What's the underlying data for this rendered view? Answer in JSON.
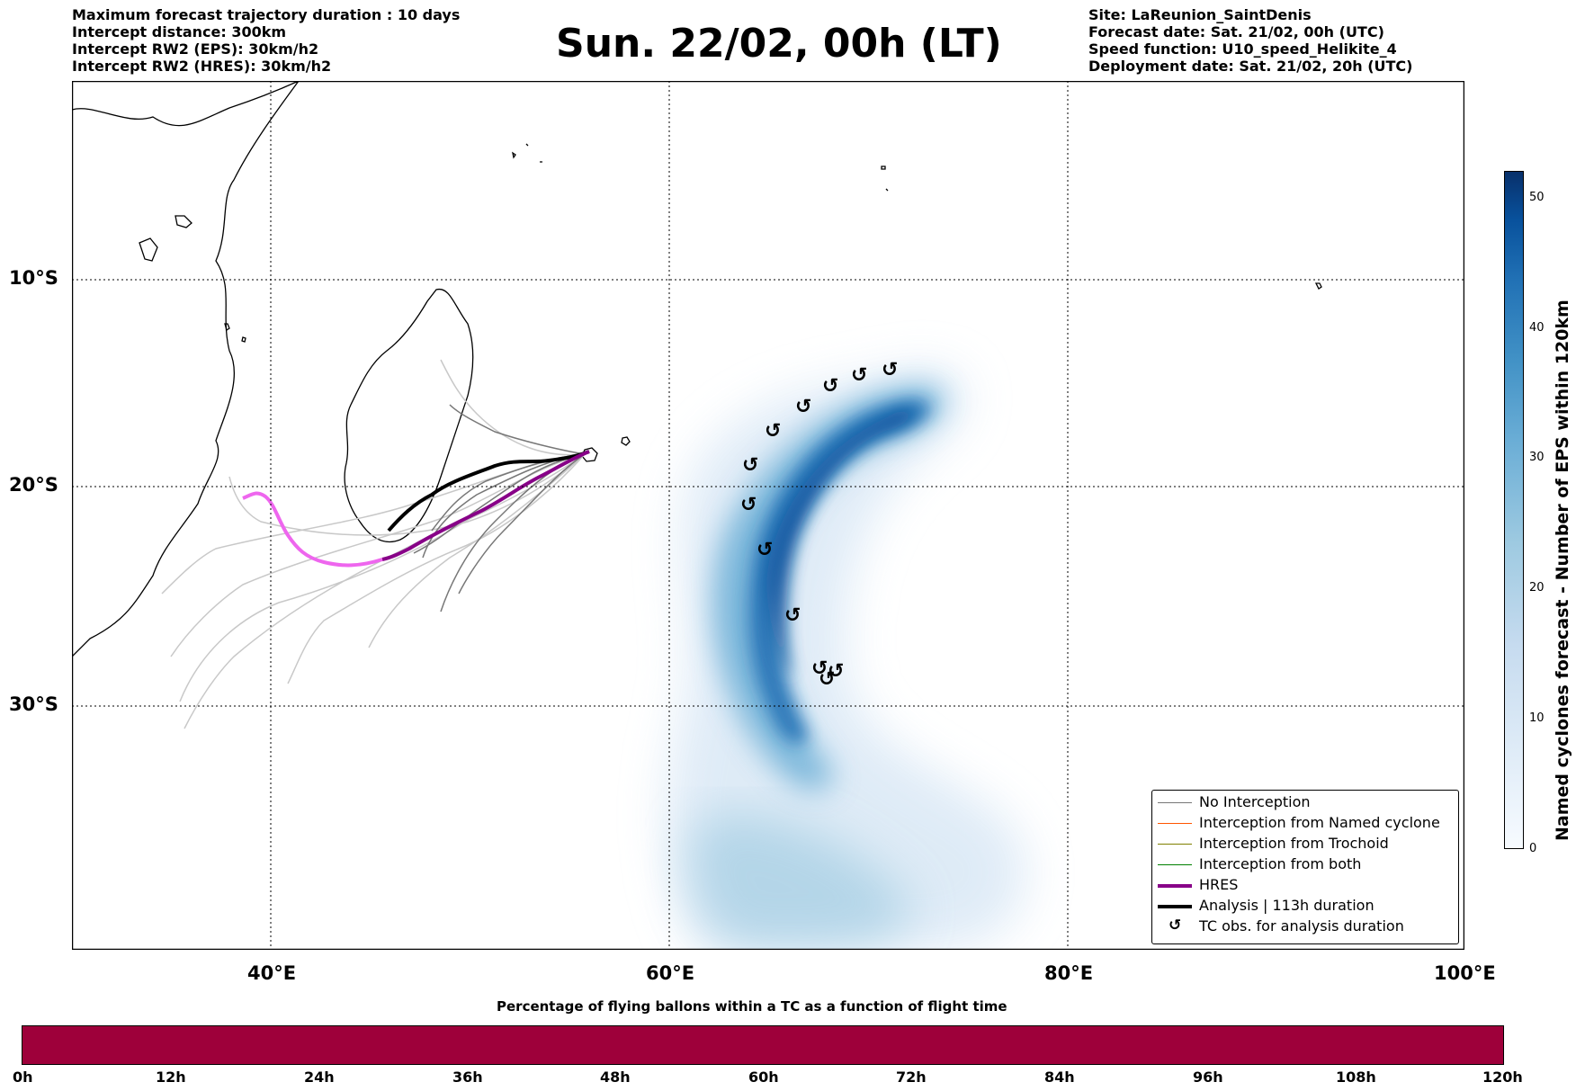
{
  "header_left": [
    "Maximum forecast trajectory duration : 10 days",
    "Intercept distance: 300km",
    "Intercept RW2 (EPS):  30km/h2",
    "Intercept RW2 (HRES): 30km/h2"
  ],
  "title": "Sun. 22/02, 00h (LT)",
  "header_right": [
    "Site: LaReunion_SaintDenis",
    "Forecast date: Sat. 21/02, 00h (UTC)",
    "Speed function: U10_speed_Helikite_4",
    "Deployment date: Sat. 21/02, 20h (UTC)"
  ],
  "map": {
    "lat_labels": [
      "10°S",
      "20°S",
      "30°S"
    ],
    "lon_labels": [
      "40°E",
      "60°E",
      "80°E",
      "100°E"
    ],
    "grid": "dotted",
    "colors": {
      "hres_forecast": "#880088",
      "hres_post": "#ee66ee",
      "analysis": "#000000",
      "no_interception": "#777777",
      "eps_light": "#c8c8c8",
      "density_max": "#08306b",
      "density_min": "#f7fbff"
    },
    "tc_obs_icon": "cyclone-anticlockwise-icon"
  },
  "legend": [
    {
      "label": "No Interception",
      "color": "#777777",
      "style": "thin"
    },
    {
      "label": "Interception from Named cyclone",
      "color": "#ff5500",
      "style": "thin"
    },
    {
      "label": "Interception from Trochoid",
      "color": "#808000",
      "style": "thin"
    },
    {
      "label": "Interception from both",
      "color": "#008000",
      "style": "thin"
    },
    {
      "label": "HRES",
      "color": "#880088",
      "style": "thick"
    },
    {
      "label": "Analysis | 113h duration",
      "color": "#000000",
      "style": "thick"
    },
    {
      "label": "TC obs. for analysis duration",
      "color": "#000000",
      "style": "icon"
    }
  ],
  "colorbar": {
    "label": "Named cyclones forecast - Number of EPS within 120km",
    "ticks": [
      "0",
      "10",
      "20",
      "30",
      "40",
      "50"
    ],
    "min": 0,
    "max": 52
  },
  "bottom_bar": {
    "title": "Percentage of flying ballons within a TC as a function of flight time",
    "color": "#9e003a",
    "ticks": [
      "0h",
      "12h",
      "24h",
      "36h",
      "48h",
      "60h",
      "72h",
      "84h",
      "96h",
      "108h",
      "120h"
    ]
  }
}
